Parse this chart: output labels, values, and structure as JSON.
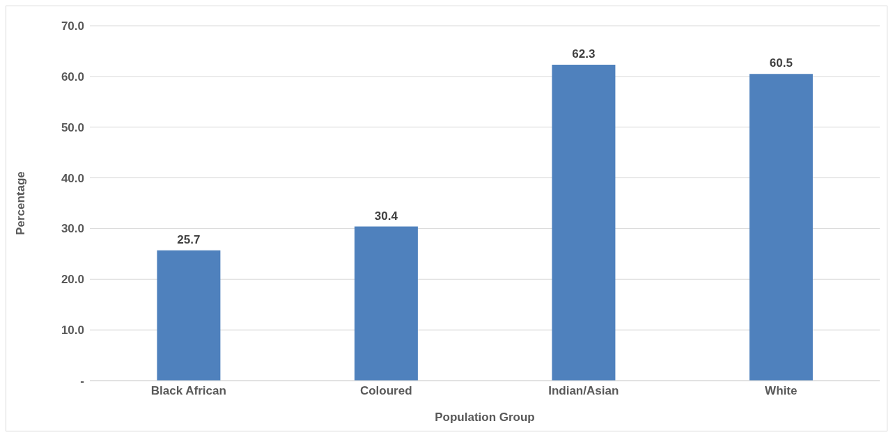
{
  "chart_data": {
    "type": "bar",
    "xlabel": "Population Group",
    "ylabel": "Percentage",
    "categories": [
      "Black African",
      "Coloured",
      "Indian/Asian",
      "White"
    ],
    "values": [
      25.7,
      30.4,
      62.3,
      60.5
    ],
    "color": "#4f81bd",
    "ylim": [
      0,
      70
    ],
    "yticks": [
      {
        "value": 0,
        "label": "-"
      },
      {
        "value": 10,
        "label": "10.0"
      },
      {
        "value": 20,
        "label": "20.0"
      },
      {
        "value": 30,
        "label": "30.0"
      },
      {
        "value": 40,
        "label": "40.0"
      },
      {
        "value": 50,
        "label": "50.0"
      },
      {
        "value": 60,
        "label": "60.0"
      },
      {
        "value": 70,
        "label": "70.0"
      }
    ],
    "grid": "y",
    "data_labels": true,
    "legend": false
  }
}
